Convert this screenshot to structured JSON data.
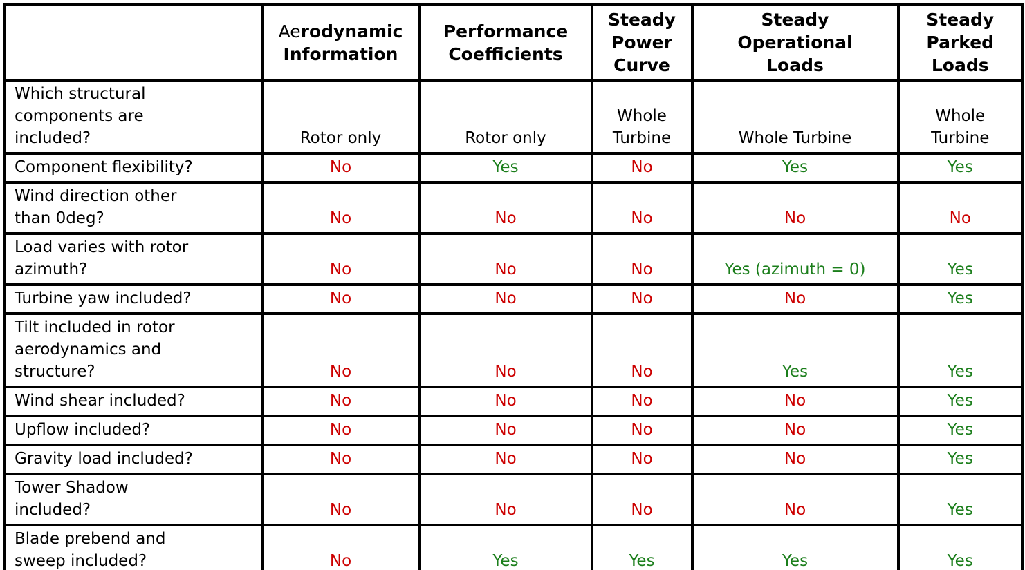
{
  "colors": {
    "yes_text": "#1b7e1b",
    "no_text": "#cc0000",
    "body_text": "#000000",
    "border": "#000000",
    "background": "#ffffff"
  },
  "table": {
    "corner_label": "",
    "columns": [
      {
        "key": "aerodynamic-information",
        "segments": [
          {
            "text": "Ae",
            "bold": false
          },
          {
            "text": "rodynamic\nInformation",
            "bold": true
          }
        ]
      },
      {
        "key": "performance-coefficients",
        "segments": [
          {
            "text": "Performance\nCoefficients",
            "bold": true
          }
        ]
      },
      {
        "key": "steady-power-curve",
        "segments": [
          {
            "text": "Steady\nPower\nCurve",
            "bold": true
          }
        ]
      },
      {
        "key": "steady-operational-loads",
        "segments": [
          {
            "text": "Steady\nOperational\nLoads",
            "bold": true
          }
        ]
      },
      {
        "key": "steady-parked-loads",
        "segments": [
          {
            "text": "Steady\nParked\nLoads",
            "bold": true
          }
        ]
      }
    ],
    "rows": [
      {
        "key": "structural-components",
        "label": "Which structural\ncomponents are\nincluded?",
        "values": [
          {
            "text": "Rotor only",
            "type": "plain"
          },
          {
            "text": "Rotor only",
            "type": "plain"
          },
          {
            "text": "Whole\nTurbine",
            "type": "plain"
          },
          {
            "text": "Whole Turbine",
            "type": "plain"
          },
          {
            "text": "Whole\nTurbine",
            "type": "plain"
          }
        ]
      },
      {
        "key": "component-flexibility",
        "label": "Component flexibility?",
        "values": [
          {
            "text": "No",
            "type": "no"
          },
          {
            "text": "Yes",
            "type": "yes"
          },
          {
            "text": "No",
            "type": "no"
          },
          {
            "text": "Yes",
            "type": "yes"
          },
          {
            "text": "Yes",
            "type": "yes"
          }
        ]
      },
      {
        "key": "wind-direction",
        "label": "Wind direction other\nthan 0deg?",
        "values": [
          {
            "text": "No",
            "type": "no"
          },
          {
            "text": "No",
            "type": "no"
          },
          {
            "text": "No",
            "type": "no"
          },
          {
            "text": "No",
            "type": "no"
          },
          {
            "text": "No",
            "type": "no"
          }
        ]
      },
      {
        "key": "load-varies-azimuth",
        "label": "Load varies with rotor\nazimuth?",
        "values": [
          {
            "text": "No",
            "type": "no"
          },
          {
            "text": "No",
            "type": "no"
          },
          {
            "text": "No",
            "type": "no"
          },
          {
            "text": "Yes (azimuth = 0)",
            "type": "yes"
          },
          {
            "text": "Yes",
            "type": "yes"
          }
        ]
      },
      {
        "key": "turbine-yaw",
        "label": "Turbine yaw included?",
        "values": [
          {
            "text": "No",
            "type": "no"
          },
          {
            "text": "No",
            "type": "no"
          },
          {
            "text": "No",
            "type": "no"
          },
          {
            "text": "No",
            "type": "no"
          },
          {
            "text": "Yes",
            "type": "yes"
          }
        ]
      },
      {
        "key": "tilt-included",
        "label": "Tilt included in rotor\naerodynamics and\nstructure?",
        "values": [
          {
            "text": "No",
            "type": "no"
          },
          {
            "text": "No",
            "type": "no"
          },
          {
            "text": "No",
            "type": "no"
          },
          {
            "text": "Yes",
            "type": "yes"
          },
          {
            "text": "Yes",
            "type": "yes"
          }
        ]
      },
      {
        "key": "wind-shear",
        "label": "Wind shear included?",
        "values": [
          {
            "text": "No",
            "type": "no"
          },
          {
            "text": "No",
            "type": "no"
          },
          {
            "text": "No",
            "type": "no"
          },
          {
            "text": "No",
            "type": "no"
          },
          {
            "text": "Yes",
            "type": "yes"
          }
        ]
      },
      {
        "key": "upflow",
        "label": "Upflow included?",
        "values": [
          {
            "text": "No",
            "type": "no"
          },
          {
            "text": "No",
            "type": "no"
          },
          {
            "text": "No",
            "type": "no"
          },
          {
            "text": "No",
            "type": "no"
          },
          {
            "text": "Yes",
            "type": "yes"
          }
        ]
      },
      {
        "key": "gravity-load",
        "label": "Gravity load included?",
        "values": [
          {
            "text": "No",
            "type": "no"
          },
          {
            "text": "No",
            "type": "no"
          },
          {
            "text": "No",
            "type": "no"
          },
          {
            "text": "No",
            "type": "no"
          },
          {
            "text": "Yes",
            "type": "yes"
          }
        ]
      },
      {
        "key": "tower-shadow",
        "label": "Tower Shadow\nincluded?",
        "values": [
          {
            "text": "No",
            "type": "no"
          },
          {
            "text": "No",
            "type": "no"
          },
          {
            "text": "No",
            "type": "no"
          },
          {
            "text": "No",
            "type": "no"
          },
          {
            "text": "Yes",
            "type": "yes"
          }
        ]
      },
      {
        "key": "blade-prebend",
        "label": "Blade prebend and\nsweep included?",
        "values": [
          {
            "text": "No",
            "type": "no"
          },
          {
            "text": "Yes",
            "type": "yes"
          },
          {
            "text": "Yes",
            "type": "yes"
          },
          {
            "text": "Yes",
            "type": "yes"
          },
          {
            "text": "Yes",
            "type": "yes"
          }
        ]
      }
    ]
  }
}
